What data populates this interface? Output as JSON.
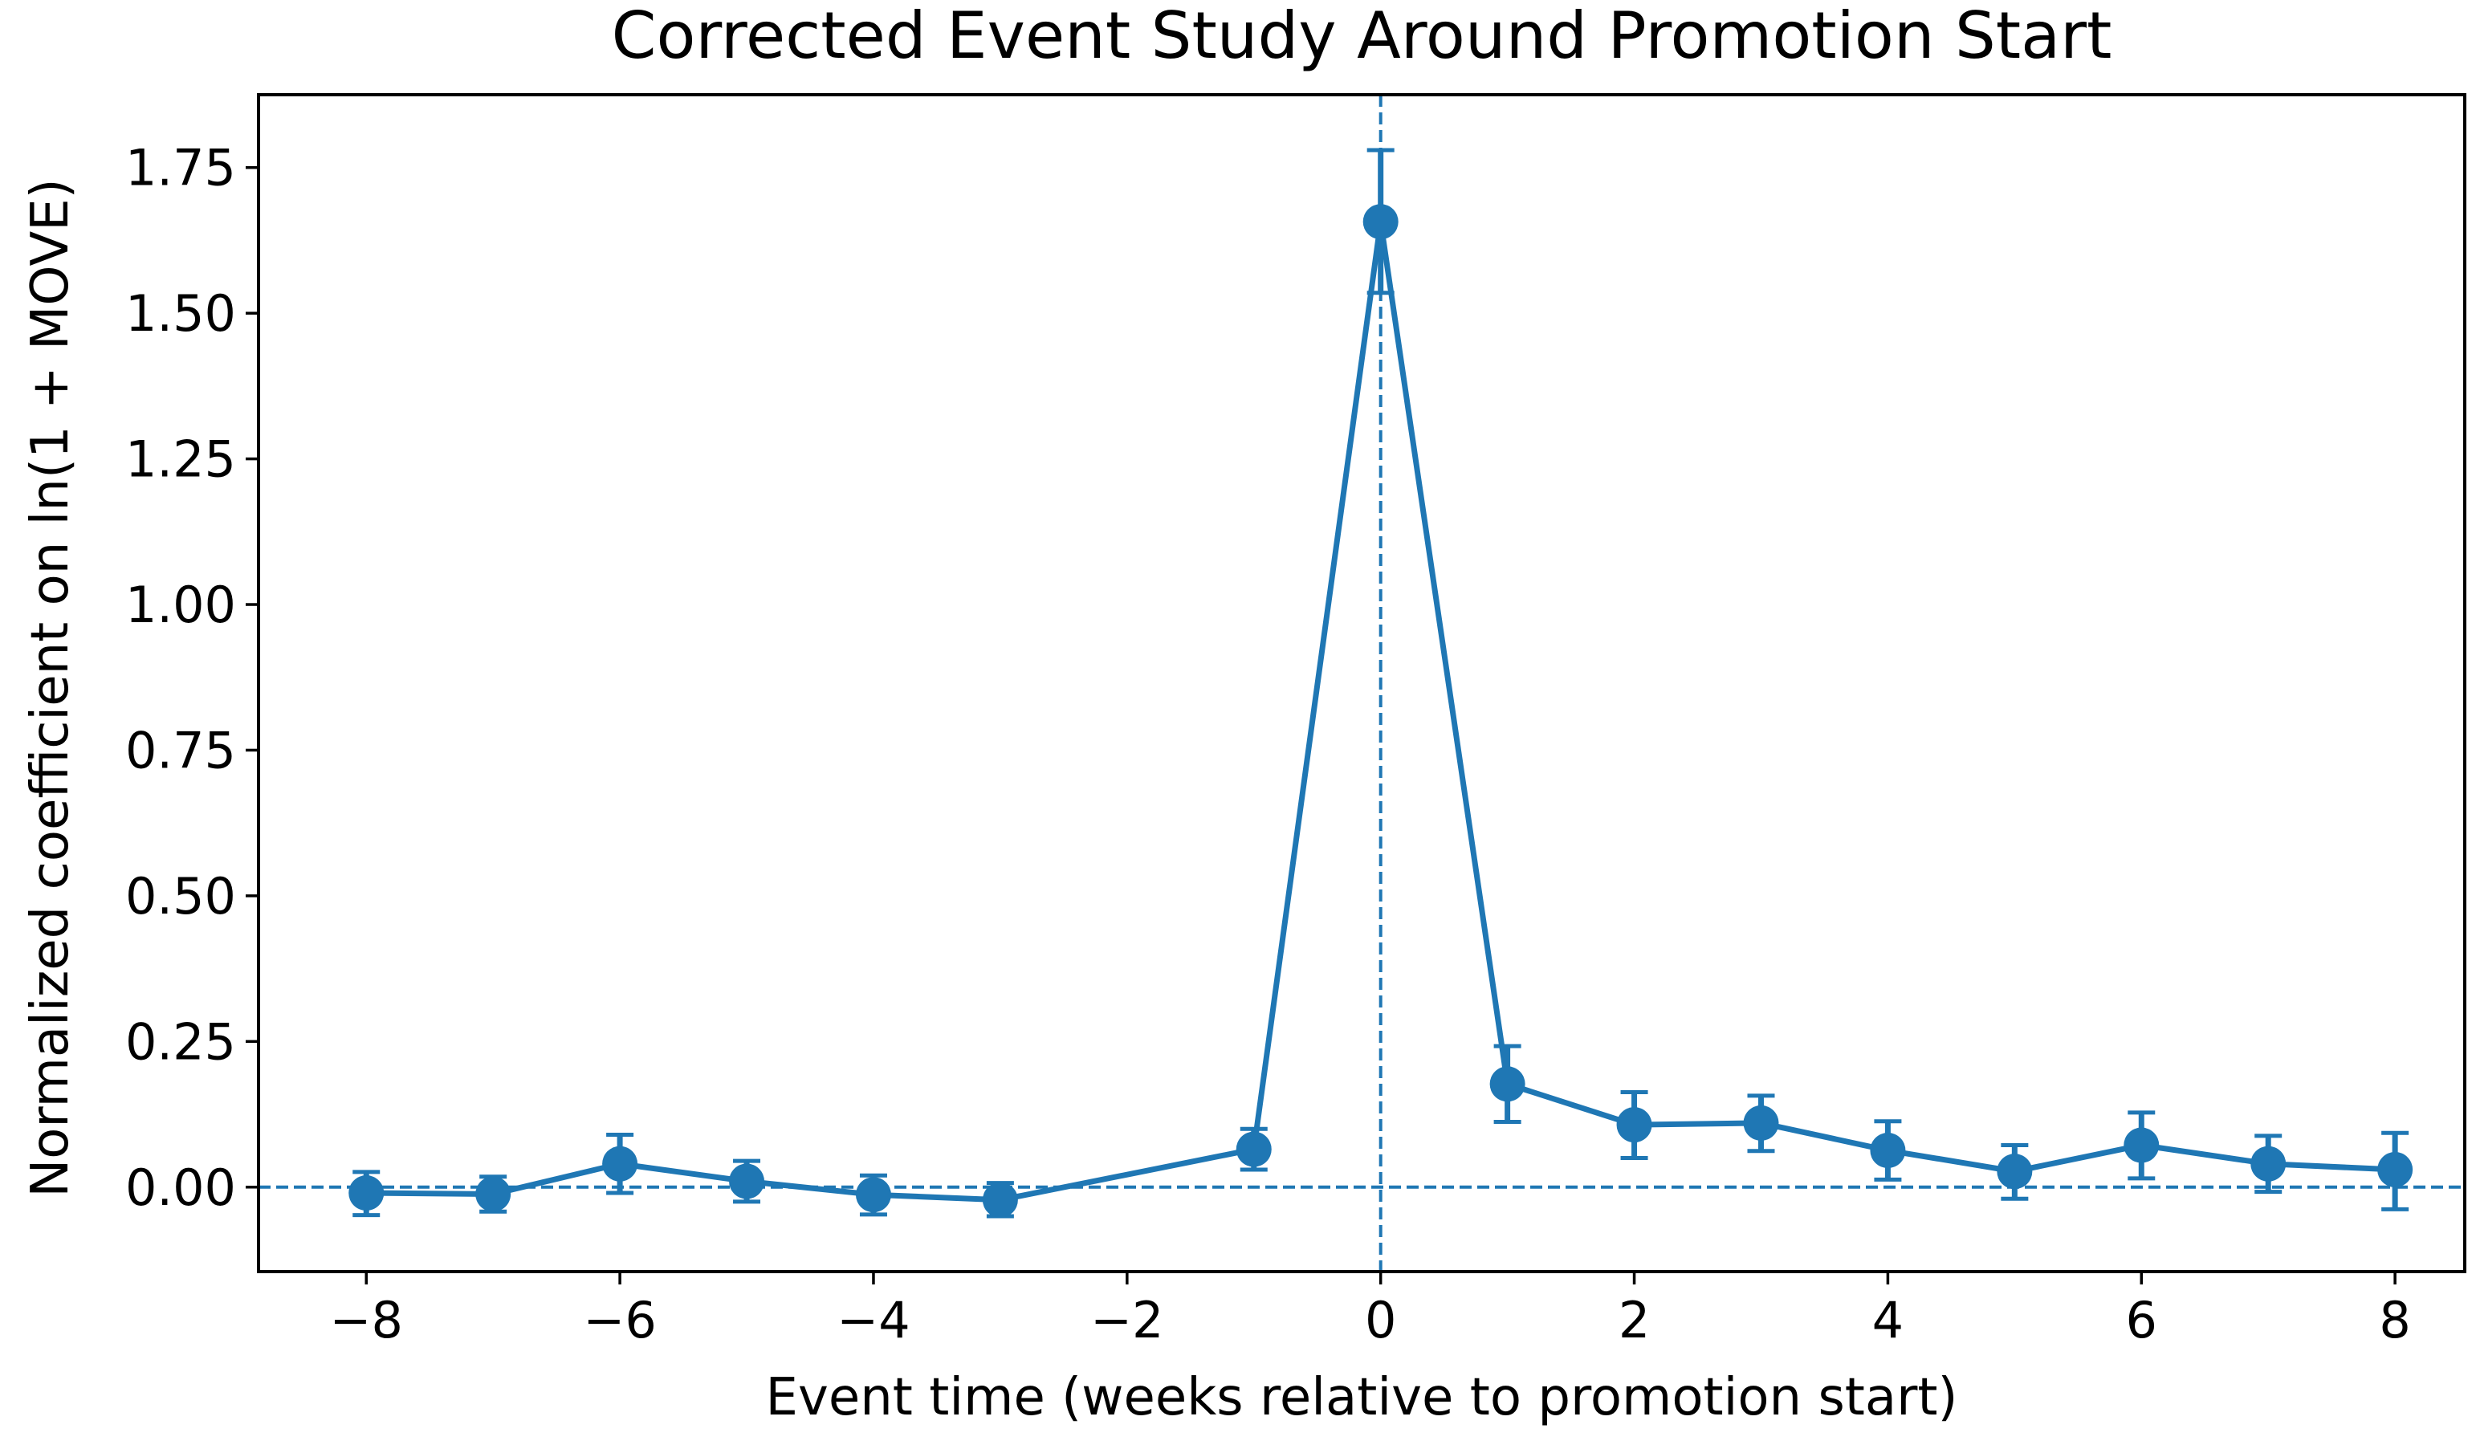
{
  "chart_data": {
    "type": "line",
    "title": "Corrected Event Study Around Promotion Start",
    "xlabel": "Event time (weeks relative to promotion start)",
    "ylabel": "Normalized coefficient on ln(1 + MOVE)",
    "xlim": [
      -8.85,
      8.55
    ],
    "ylim": [
      -0.145,
      1.875
    ],
    "x_ticks": [
      -8,
      -6,
      -4,
      -2,
      0,
      2,
      4,
      6,
      8
    ],
    "x_tick_labels": [
      "−8",
      "−6",
      "−4",
      "−2",
      "0",
      "2",
      "4",
      "6",
      "8"
    ],
    "y_ticks": [
      0.0,
      0.25,
      0.5,
      0.75,
      1.0,
      1.25,
      1.5,
      1.75
    ],
    "y_tick_labels": [
      "0.00",
      "0.25",
      "0.50",
      "0.75",
      "1.00",
      "1.25",
      "1.50",
      "1.75"
    ],
    "grid": false,
    "reference_lines": [
      {
        "orientation": "horizontal",
        "value": 0,
        "style": "dashed"
      },
      {
        "orientation": "vertical",
        "value": 0,
        "style": "dashed"
      }
    ],
    "series": [
      {
        "color": "#1f77b4",
        "points": [
          {
            "x": -8,
            "y": -0.01,
            "lo": -0.048,
            "hi": 0.026
          },
          {
            "x": -7,
            "y": -0.012,
            "lo": -0.042,
            "hi": 0.018
          },
          {
            "x": -6,
            "y": 0.04,
            "lo": -0.01,
            "hi": 0.09
          },
          {
            "x": -5,
            "y": 0.01,
            "lo": -0.025,
            "hi": 0.045
          },
          {
            "x": -4,
            "y": -0.013,
            "lo": -0.047,
            "hi": 0.02
          },
          {
            "x": -3,
            "y": -0.022,
            "lo": -0.05,
            "hi": 0.007
          },
          {
            "x": -1,
            "y": 0.065,
            "lo": 0.03,
            "hi": 0.1
          },
          {
            "x": 0,
            "y": 1.657,
            "lo": 1.535,
            "hi": 1.78
          },
          {
            "x": 1,
            "y": 0.177,
            "lo": 0.112,
            "hi": 0.242
          },
          {
            "x": 2,
            "y": 0.107,
            "lo": 0.05,
            "hi": 0.163
          },
          {
            "x": 3,
            "y": 0.11,
            "lo": 0.062,
            "hi": 0.157
          },
          {
            "x": 4,
            "y": 0.063,
            "lo": 0.013,
            "hi": 0.113
          },
          {
            "x": 5,
            "y": 0.027,
            "lo": -0.02,
            "hi": 0.072
          },
          {
            "x": 6,
            "y": 0.072,
            "lo": 0.015,
            "hi": 0.128
          },
          {
            "x": 7,
            "y": 0.04,
            "lo": -0.008,
            "hi": 0.088
          },
          {
            "x": 8,
            "y": 0.03,
            "lo": -0.038,
            "hi": 0.093
          }
        ]
      }
    ]
  }
}
